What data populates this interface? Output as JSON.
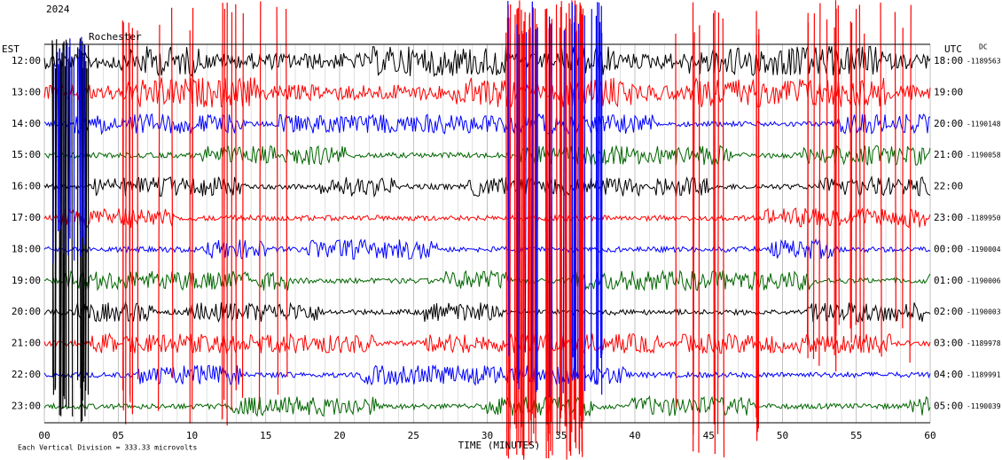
{
  "header": {
    "lines": [
      "2024",
      "Rochester"
    ]
  },
  "left_title": "EST",
  "right_title": "UTC",
  "right_note": "DC",
  "rows": [
    {
      "est": "12:00",
      "utc": "18:00",
      "offset": "-1189563"
    },
    {
      "est": "13:00",
      "utc": "19:00",
      "offset": null
    },
    {
      "est": "14:00",
      "utc": "20:00",
      "offset": "-1190148"
    },
    {
      "est": "15:00",
      "utc": "21:00",
      "offset": "-1190058"
    },
    {
      "est": "16:00",
      "utc": "22:00",
      "offset": null
    },
    {
      "est": "17:00",
      "utc": "23:00",
      "offset": "-1189950"
    },
    {
      "est": "18:00",
      "utc": "00:00",
      "offset": "-1190004"
    },
    {
      "est": "19:00",
      "utc": "01:00",
      "offset": "-1190006"
    },
    {
      "est": "20:00",
      "utc": "02:00",
      "offset": "-1190003"
    },
    {
      "est": "21:00",
      "utc": "03:00",
      "offset": "-1189978"
    },
    {
      "est": "22:00",
      "utc": "04:00",
      "offset": "-1189991"
    },
    {
      "est": "23:00",
      "utc": "05:00",
      "offset": "-1190039"
    }
  ],
  "x_ticks": [
    "00",
    "05",
    "10",
    "15",
    "20",
    "25",
    "30",
    "35",
    "40",
    "45",
    "50",
    "55",
    "60"
  ],
  "x_label": "TIME (MINUTES)",
  "footer": "Each Vertical Division = 333.33 microvolts"
}
